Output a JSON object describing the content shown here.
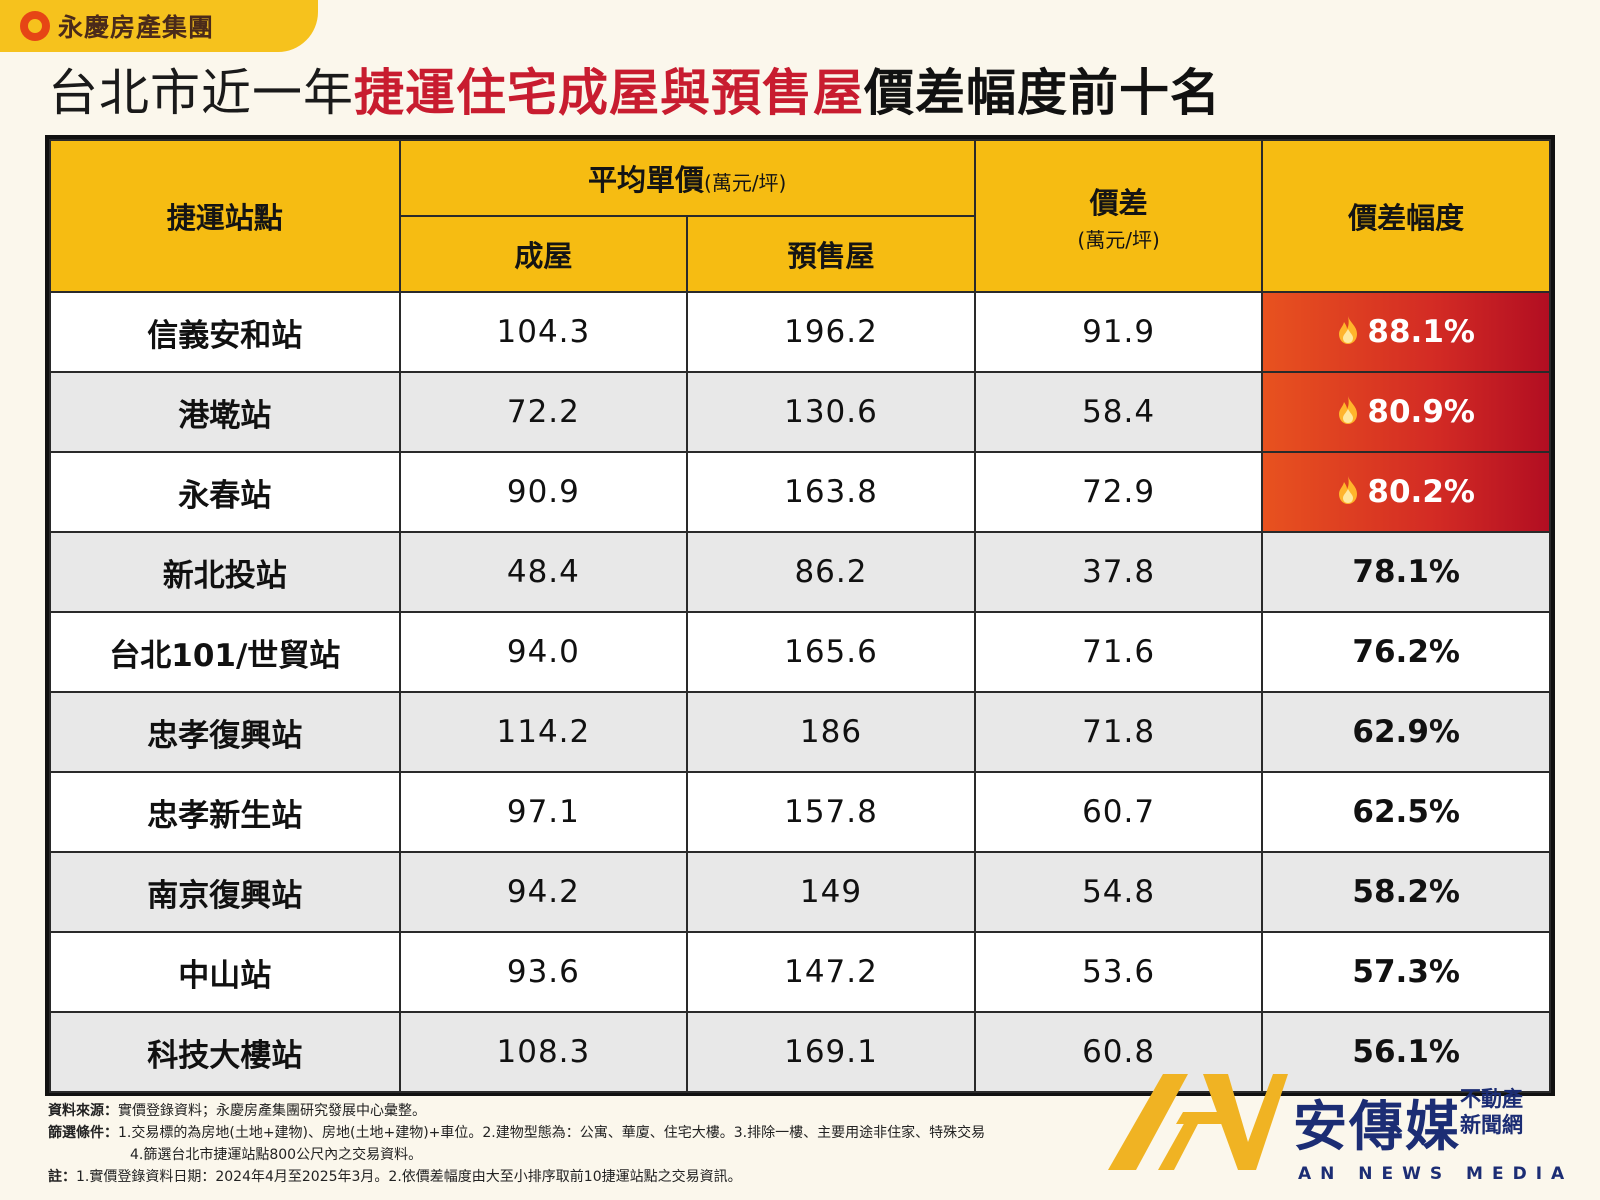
{
  "brand": {
    "name": "永慶房產集團"
  },
  "title": {
    "part1": "台北市近一年",
    "part2": "捷運住宅成屋與預售屋",
    "part3": "價差幅度前十名"
  },
  "table": {
    "headers": {
      "station": "捷運站點",
      "avg_price": "平均單價",
      "avg_price_unit": "(萬元/坪)",
      "existing": "成屋",
      "presale": "預售屋",
      "diff": "價差",
      "diff_unit": "(萬元/坪)",
      "diff_pct": "價差幅度"
    },
    "rows": [
      {
        "station": "信義安和站",
        "existing": "104.3",
        "presale": "196.2",
        "diff": "91.9",
        "pct": "88.1%",
        "hot": true
      },
      {
        "station": "港墘站",
        "existing": "72.2",
        "presale": "130.6",
        "diff": "58.4",
        "pct": "80.9%",
        "hot": true
      },
      {
        "station": "永春站",
        "existing": "90.9",
        "presale": "163.8",
        "diff": "72.9",
        "pct": "80.2%",
        "hot": true
      },
      {
        "station": "新北投站",
        "existing": "48.4",
        "presale": "86.2",
        "diff": "37.8",
        "pct": "78.1%",
        "hot": false
      },
      {
        "station": "台北101/世貿站",
        "existing": "94.0",
        "presale": "165.6",
        "diff": "71.6",
        "pct": "76.2%",
        "hot": false
      },
      {
        "station": "忠孝復興站",
        "existing": "114.2",
        "presale": "186",
        "diff": "71.8",
        "pct": "62.9%",
        "hot": false
      },
      {
        "station": "忠孝新生站",
        "existing": "97.1",
        "presale": "157.8",
        "diff": "60.7",
        "pct": "62.5%",
        "hot": false
      },
      {
        "station": "南京復興站",
        "existing": "94.2",
        "presale": "149",
        "diff": "54.8",
        "pct": "58.2%",
        "hot": false
      },
      {
        "station": "中山站",
        "existing": "93.6",
        "presale": "147.2",
        "diff": "53.6",
        "pct": "57.3%",
        "hot": false
      },
      {
        "station": "科技大樓站",
        "existing": "108.3",
        "presale": "169.1",
        "diff": "60.8",
        "pct": "56.1%",
        "hot": false
      }
    ]
  },
  "notes": {
    "source_label": "資料來源：",
    "source_text": "實價登錄資料；永慶房產集團研究發展中心彙整。",
    "criteria_label": "篩選條件：",
    "criteria_text": "1.交易標的為房地(土地+建物)、房地(土地+建物)+車位。2.建物型態為：公寓、華廈、住宅大樓。3.排除一樓、主要用途非住家、特殊交易",
    "criteria_text2": "4.篩選台北市捷運站點800公尺內之交易資料。",
    "note_label": "註：",
    "note_text": "1.實價登錄資料日期：2024年4月至2025年3月。2.依價差幅度由大至小排序取前10捷運站點之交易資訊。"
  },
  "watermark": {
    "name": "安傳媒",
    "tag1": "不動產",
    "tag2": "新聞網",
    "english": "AN NEWS MEDIA"
  },
  "colors": {
    "header_bg": "#f6bc12",
    "title_accent": "#c81c2f",
    "hot_cell": "#d32b24",
    "watermark": "#1c2d74"
  }
}
